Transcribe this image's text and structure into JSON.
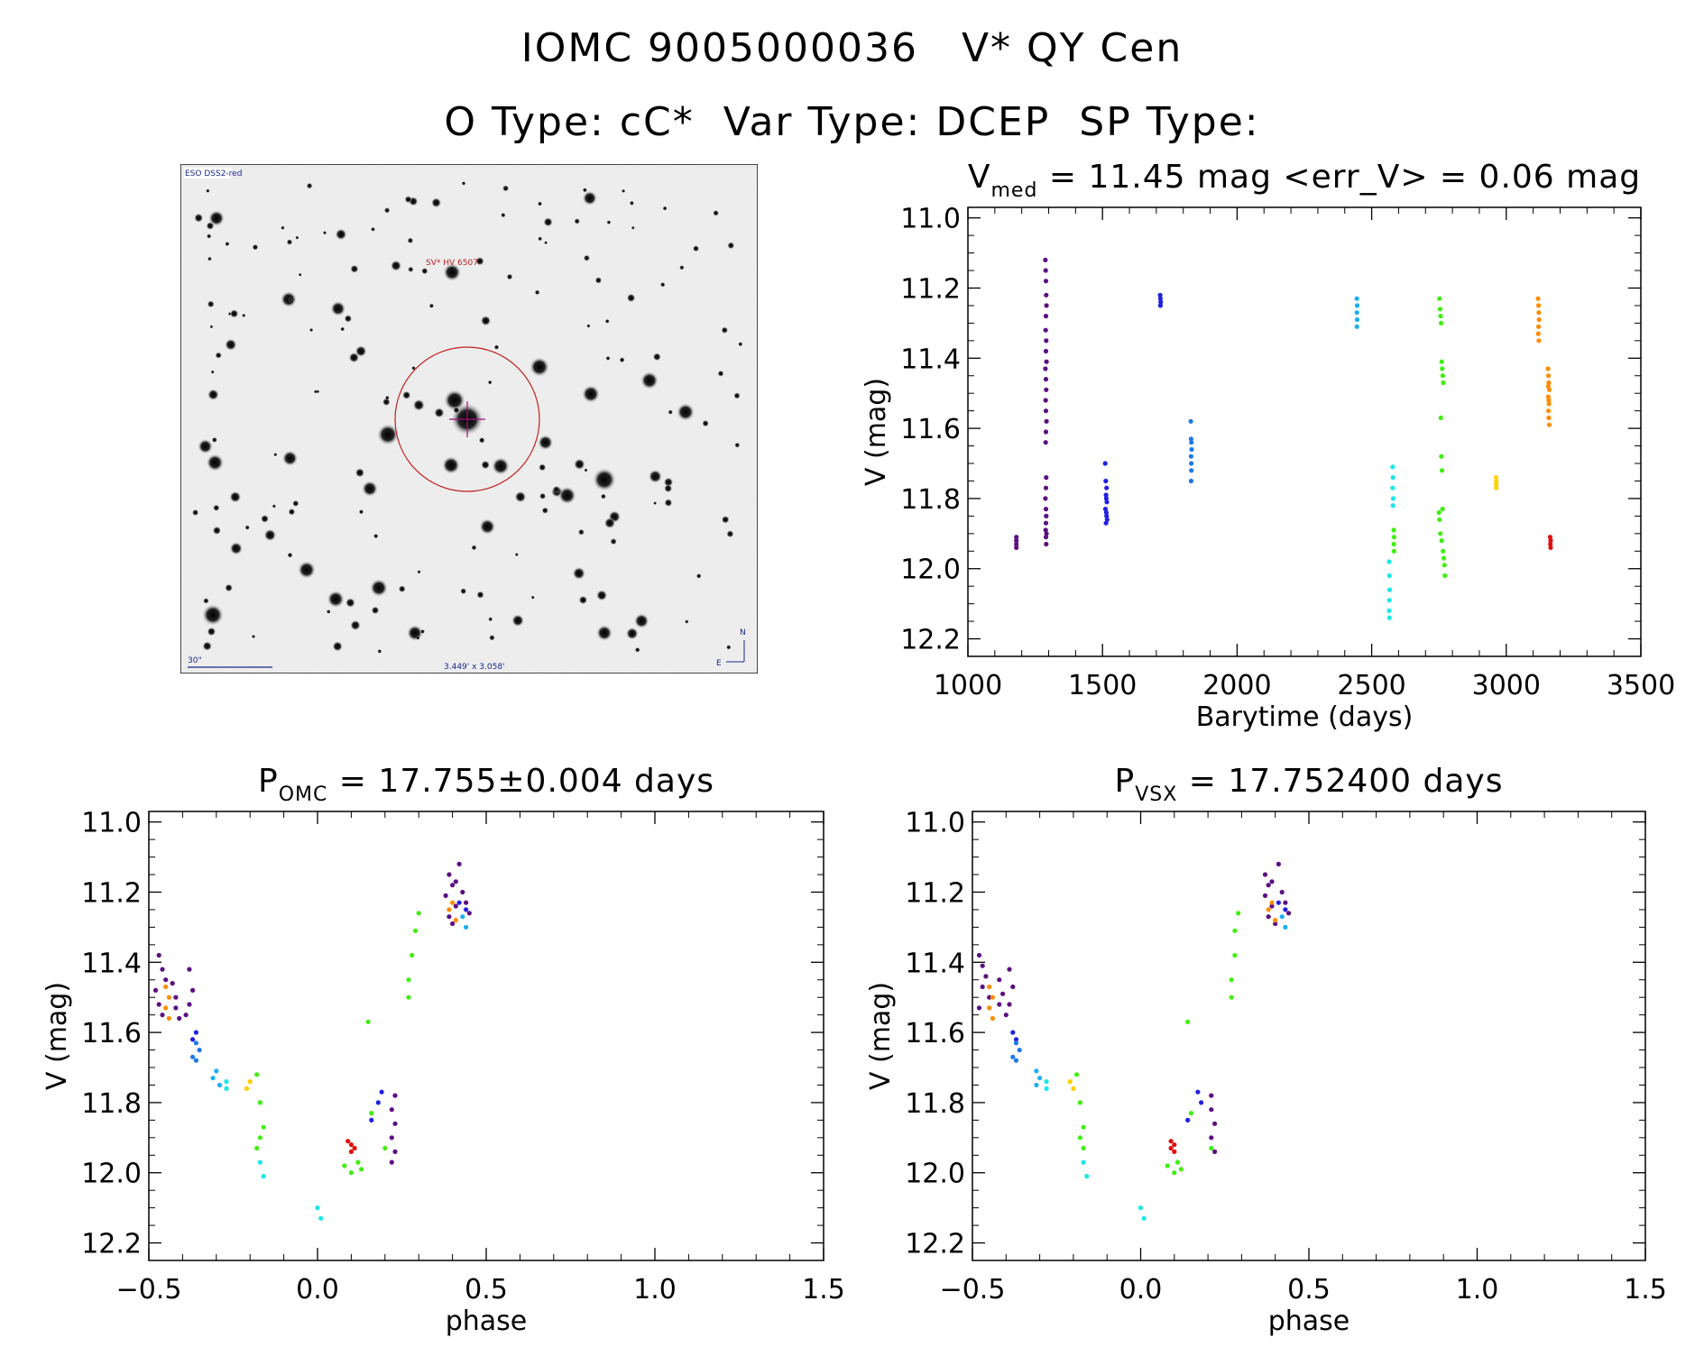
{
  "header": {
    "line1": "IOMC 9005000036   V* QY Cen",
    "line2": "O Type: cC*  Var Type: DCEP  SP Type:"
  },
  "finder": {
    "survey_label": "ESO DSS2-red",
    "object_label": "SV* HV 6507",
    "scale_label": "30\"",
    "fov_label": "3.449' x 3.058'",
    "north_label": "N",
    "east_label": "E"
  },
  "colors": {
    "purple": "#5a0f80",
    "blue": "#2020e0",
    "azure": "#1e78e8",
    "skyblue": "#1ab0f0",
    "cyan": "#18e8e8",
    "green": "#40ee10",
    "yellow": "#ffd000",
    "orange": "#ff8c00",
    "red": "#e01010",
    "finder_circle": "#c02020"
  },
  "chart_data": [
    {
      "type": "scatter",
      "id": "lightcurve",
      "title_main": "V",
      "title_sub": "med",
      "title_rest": " = 11.45 mag <err_V> = 0.06 mag",
      "xlabel": "Barytime (days)",
      "ylabel": "V (mag)",
      "xlim": [
        1000,
        3500
      ],
      "ylim": [
        12.25,
        10.97
      ],
      "xticks": [
        1000,
        1500,
        2000,
        2500,
        3000,
        3500
      ],
      "xtick_labels": [
        "1000",
        "1500",
        "2000",
        "2500",
        "3000",
        "3500"
      ],
      "yticks": [
        11.0,
        11.2,
        11.4,
        11.6,
        11.8,
        12.0,
        12.2
      ],
      "ytick_labels": [
        "11.0",
        "11.2",
        "11.4",
        "11.6",
        "11.8",
        "12.0",
        "12.2"
      ],
      "series": [
        {
          "name": "group-1180",
          "color": "purple",
          "x": [
            1180,
            1180,
            1180,
            1180
          ],
          "y": [
            11.91,
            11.92,
            11.93,
            11.94
          ]
        },
        {
          "name": "group-1290",
          "color": "purple",
          "x": [
            1288,
            1289,
            1290,
            1291,
            1292,
            1290,
            1289,
            1291,
            1290,
            1292,
            1288,
            1290,
            1291,
            1289,
            1290,
            1292,
            1290,
            1289,
            1291,
            1290,
            1288,
            1290,
            1291,
            1290,
            1289,
            1292,
            1290,
            1291
          ],
          "y": [
            11.12,
            11.15,
            11.18,
            11.22,
            11.25,
            11.28,
            11.32,
            11.35,
            11.38,
            11.41,
            11.43,
            11.46,
            11.49,
            11.52,
            11.55,
            11.58,
            11.61,
            11.64,
            11.74,
            11.77,
            11.8,
            11.83,
            11.85,
            11.87,
            11.89,
            11.9,
            11.91,
            11.93
          ]
        },
        {
          "name": "group-1515",
          "color": "blue",
          "x": [
            1510,
            1512,
            1515,
            1513,
            1514,
            1516,
            1511,
            1514,
            1515,
            1517,
            1513
          ],
          "y": [
            11.7,
            11.75,
            11.77,
            11.79,
            11.8,
            11.81,
            11.83,
            11.84,
            11.85,
            11.86,
            11.87
          ]
        },
        {
          "name": "group-1715",
          "color": "blue",
          "x": [
            1714,
            1715,
            1716,
            1715
          ],
          "y": [
            11.22,
            11.23,
            11.24,
            11.25
          ]
        },
        {
          "name": "group-1830",
          "color": "azure",
          "x": [
            1828,
            1829,
            1830,
            1831,
            1829,
            1830,
            1830,
            1829
          ],
          "y": [
            11.58,
            11.63,
            11.64,
            11.66,
            11.68,
            11.7,
            11.72,
            11.75
          ]
        },
        {
          "name": "group-2445",
          "color": "skyblue",
          "x": [
            2445,
            2446,
            2445,
            2446,
            2445
          ],
          "y": [
            11.23,
            11.25,
            11.27,
            11.29,
            11.31
          ]
        },
        {
          "name": "group-2570",
          "color": "cyan",
          "x": [
            2565,
            2566,
            2567,
            2566,
            2565,
            2566,
            2578,
            2579,
            2578,
            2580,
            2579
          ],
          "y": [
            11.98,
            12.02,
            12.06,
            12.09,
            12.12,
            12.14,
            11.71,
            11.74,
            11.77,
            11.8,
            11.82
          ]
        },
        {
          "name": "group-2585",
          "color": "green",
          "x": [
            2582,
            2583,
            2582,
            2583
          ],
          "y": [
            11.89,
            11.91,
            11.93,
            11.95
          ]
        },
        {
          "name": "group-2760",
          "color": "green",
          "x": [
            2752,
            2754,
            2756,
            2758,
            2760,
            2762,
            2764,
            2766,
            2757,
            2759,
            2761,
            2763,
            2750,
            2752,
            2755,
            2760,
            2765,
            2768,
            2770,
            2772
          ],
          "y": [
            11.23,
            11.26,
            11.28,
            11.3,
            11.41,
            11.43,
            11.45,
            11.47,
            11.57,
            11.68,
            11.72,
            11.83,
            11.84,
            11.86,
            11.9,
            11.92,
            11.95,
            11.97,
            11.99,
            12.02
          ]
        },
        {
          "name": "group-2960",
          "color": "yellow",
          "x": [
            2962,
            2963,
            2962,
            2963
          ],
          "y": [
            11.74,
            11.75,
            11.76,
            11.77
          ]
        },
        {
          "name": "group-3120",
          "color": "orange",
          "x": [
            3118,
            3120,
            3121,
            3122,
            3120,
            3119,
            3121
          ],
          "y": [
            11.23,
            11.25,
            11.27,
            11.29,
            11.31,
            11.33,
            11.35
          ]
        },
        {
          "name": "group-3160",
          "color": "orange",
          "x": [
            3155,
            3157,
            3158,
            3160,
            3156,
            3159,
            3157,
            3158,
            3160,
            3156,
            3158
          ],
          "y": [
            11.43,
            11.45,
            11.47,
            11.49,
            11.51,
            11.53,
            11.55,
            11.57,
            11.59,
            11.48,
            11.52
          ]
        },
        {
          "name": "group-3165",
          "color": "red",
          "x": [
            3163,
            3165,
            3164,
            3165
          ],
          "y": [
            11.91,
            11.92,
            11.93,
            11.94
          ]
        }
      ]
    },
    {
      "type": "scatter",
      "id": "phase-omc",
      "title_main": "P",
      "title_sub": "OMC",
      "title_rest": " = 17.755±0.004 days",
      "xlabel": "phase",
      "ylabel": "V (mag)",
      "xlim": [
        -0.5,
        1.5
      ],
      "ylim": [
        12.25,
        10.97
      ],
      "xticks": [
        -0.5,
        0.0,
        0.5,
        1.0,
        1.5
      ],
      "xtick_labels": [
        "−0.5",
        "0.0",
        "0.5",
        "1.0",
        "1.5"
      ],
      "yticks": [
        11.0,
        11.2,
        11.4,
        11.6,
        11.8,
        12.0,
        12.2
      ],
      "ytick_labels": [
        "11.0",
        "11.2",
        "11.4",
        "11.6",
        "11.8",
        "12.0",
        "12.2"
      ],
      "series": [
        {
          "name": "purple",
          "color": "purple",
          "x": [
            -0.47,
            -0.46,
            -0.45,
            -0.48,
            -0.47,
            -0.46,
            -0.43,
            -0.42,
            -0.42,
            -0.41,
            -0.38,
            -0.37,
            -0.38,
            -0.39,
            0.22,
            0.23,
            0.22,
            0.23,
            0.22,
            0.23,
            0.39,
            0.4,
            0.38,
            0.41,
            0.39,
            0.42,
            0.43,
            0.44,
            0.45,
            0.4,
            0.41
          ],
          "y": [
            11.38,
            11.42,
            11.45,
            11.48,
            11.52,
            11.55,
            11.46,
            11.5,
            11.53,
            11.56,
            11.42,
            11.48,
            11.52,
            11.55,
            11.82,
            11.86,
            11.9,
            11.94,
            11.97,
            11.78,
            11.15,
            11.18,
            11.21,
            11.24,
            11.27,
            11.12,
            11.2,
            11.23,
            11.26,
            11.29,
            11.17
          ]
        },
        {
          "name": "orange",
          "color": "orange",
          "x": [
            -0.45,
            -0.44,
            -0.45,
            -0.44,
            0.39,
            0.41,
            0.4
          ],
          "y": [
            11.47,
            11.5,
            11.53,
            11.56,
            11.25,
            11.28,
            11.23
          ]
        },
        {
          "name": "blue",
          "color": "blue",
          "x": [
            -0.36,
            -0.37,
            0.16,
            0.19,
            0.18,
            0.42,
            0.44
          ],
          "y": [
            11.6,
            11.62,
            11.85,
            11.77,
            11.8,
            11.23,
            11.25
          ]
        },
        {
          "name": "azure",
          "color": "azure",
          "x": [
            -0.36,
            -0.35,
            -0.37,
            -0.36
          ],
          "y": [
            11.63,
            11.65,
            11.67,
            11.68
          ]
        },
        {
          "name": "skyblue",
          "color": "skyblue",
          "x": [
            -0.3,
            -0.31,
            -0.29,
            0.43,
            0.44
          ],
          "y": [
            11.71,
            11.73,
            11.75,
            11.27,
            11.3
          ]
        },
        {
          "name": "cyan",
          "color": "cyan",
          "x": [
            -0.27,
            -0.27,
            -0.17,
            -0.16,
            0.0,
            0.01
          ],
          "y": [
            11.74,
            11.76,
            11.97,
            12.01,
            12.1,
            12.13
          ]
        },
        {
          "name": "yellow",
          "color": "yellow",
          "x": [
            -0.2,
            -0.21
          ],
          "y": [
            11.74,
            11.76
          ]
        },
        {
          "name": "green",
          "color": "green",
          "x": [
            -0.18,
            -0.17,
            -0.16,
            -0.17,
            -0.18,
            0.08,
            0.1,
            0.12,
            0.13,
            0.15,
            0.16,
            0.2,
            0.27,
            0.28,
            0.29,
            0.3,
            0.27
          ],
          "y": [
            11.72,
            11.8,
            11.87,
            11.9,
            11.93,
            11.98,
            12.0,
            11.97,
            11.99,
            11.57,
            11.83,
            11.93,
            11.45,
            11.38,
            11.31,
            11.26,
            11.5
          ]
        },
        {
          "name": "red",
          "color": "red",
          "x": [
            0.09,
            0.1,
            0.1,
            0.11
          ],
          "y": [
            11.91,
            11.92,
            11.94,
            11.93
          ]
        }
      ]
    },
    {
      "type": "scatter",
      "id": "phase-vsx",
      "title_main": "P",
      "title_sub": "VSX",
      "title_rest": " = 17.752400 days",
      "xlabel": "phase",
      "ylabel": "V (mag)",
      "xlim": [
        -0.5,
        1.5
      ],
      "ylim": [
        12.25,
        10.97
      ],
      "xticks": [
        -0.5,
        0.0,
        0.5,
        1.0,
        1.5
      ],
      "xtick_labels": [
        "−0.5",
        "0.0",
        "0.5",
        "1.0",
        "1.5"
      ],
      "yticks": [
        11.0,
        11.2,
        11.4,
        11.6,
        11.8,
        12.0,
        12.2
      ],
      "ytick_labels": [
        "11.0",
        "11.2",
        "11.4",
        "11.6",
        "11.8",
        "12.0",
        "12.2"
      ],
      "series": [
        {
          "name": "purple",
          "color": "purple",
          "x": [
            -0.48,
            -0.47,
            -0.46,
            -0.47,
            -0.45,
            -0.48,
            -0.42,
            -0.41,
            -0.42,
            -0.4,
            -0.39,
            -0.38,
            -0.39,
            0.21,
            0.22,
            0.21,
            0.22,
            0.21,
            0.37,
            0.38,
            0.37,
            0.39,
            0.38,
            0.41,
            0.42,
            0.43,
            0.44,
            0.4,
            0.39
          ],
          "y": [
            11.38,
            11.41,
            11.44,
            11.47,
            11.5,
            11.53,
            11.45,
            11.49,
            11.52,
            11.55,
            11.42,
            11.47,
            11.52,
            11.82,
            11.86,
            11.9,
            11.94,
            11.78,
            11.15,
            11.18,
            11.21,
            11.24,
            11.27,
            11.12,
            11.2,
            11.23,
            11.26,
            11.29,
            11.17
          ]
        },
        {
          "name": "orange",
          "color": "orange",
          "x": [
            -0.45,
            -0.44,
            -0.45,
            -0.44,
            0.38,
            0.4,
            0.39
          ],
          "y": [
            11.47,
            11.5,
            11.53,
            11.56,
            11.25,
            11.28,
            11.23
          ]
        },
        {
          "name": "blue",
          "color": "blue",
          "x": [
            -0.38,
            -0.37,
            0.14,
            0.17,
            0.18,
            0.41,
            0.43
          ],
          "y": [
            11.6,
            11.62,
            11.85,
            11.77,
            11.8,
            11.23,
            11.25
          ]
        },
        {
          "name": "azure",
          "color": "azure",
          "x": [
            -0.37,
            -0.36,
            -0.38,
            -0.37
          ],
          "y": [
            11.63,
            11.65,
            11.67,
            11.68
          ]
        },
        {
          "name": "skyblue",
          "color": "skyblue",
          "x": [
            -0.31,
            -0.3,
            -0.31,
            0.42,
            0.43
          ],
          "y": [
            11.71,
            11.73,
            11.75,
            11.27,
            11.3
          ]
        },
        {
          "name": "cyan",
          "color": "cyan",
          "x": [
            -0.28,
            -0.28,
            -0.17,
            -0.16,
            0.0,
            0.01
          ],
          "y": [
            11.74,
            11.76,
            11.97,
            12.01,
            12.1,
            12.13
          ]
        },
        {
          "name": "yellow",
          "color": "yellow",
          "x": [
            -0.21,
            -0.2
          ],
          "y": [
            11.74,
            11.76
          ]
        },
        {
          "name": "green",
          "color": "green",
          "x": [
            -0.19,
            -0.18,
            -0.17,
            -0.18,
            -0.17,
            0.08,
            0.1,
            0.11,
            0.12,
            0.14,
            0.15,
            0.21,
            0.27,
            0.28,
            0.28,
            0.29,
            0.27
          ],
          "y": [
            11.72,
            11.8,
            11.87,
            11.9,
            11.93,
            11.98,
            12.0,
            11.97,
            11.99,
            11.57,
            11.83,
            11.93,
            11.45,
            11.38,
            11.31,
            11.26,
            11.5
          ]
        },
        {
          "name": "red",
          "color": "red",
          "x": [
            0.09,
            0.1,
            0.1,
            0.09
          ],
          "y": [
            11.91,
            11.92,
            11.94,
            11.93
          ]
        }
      ]
    }
  ]
}
